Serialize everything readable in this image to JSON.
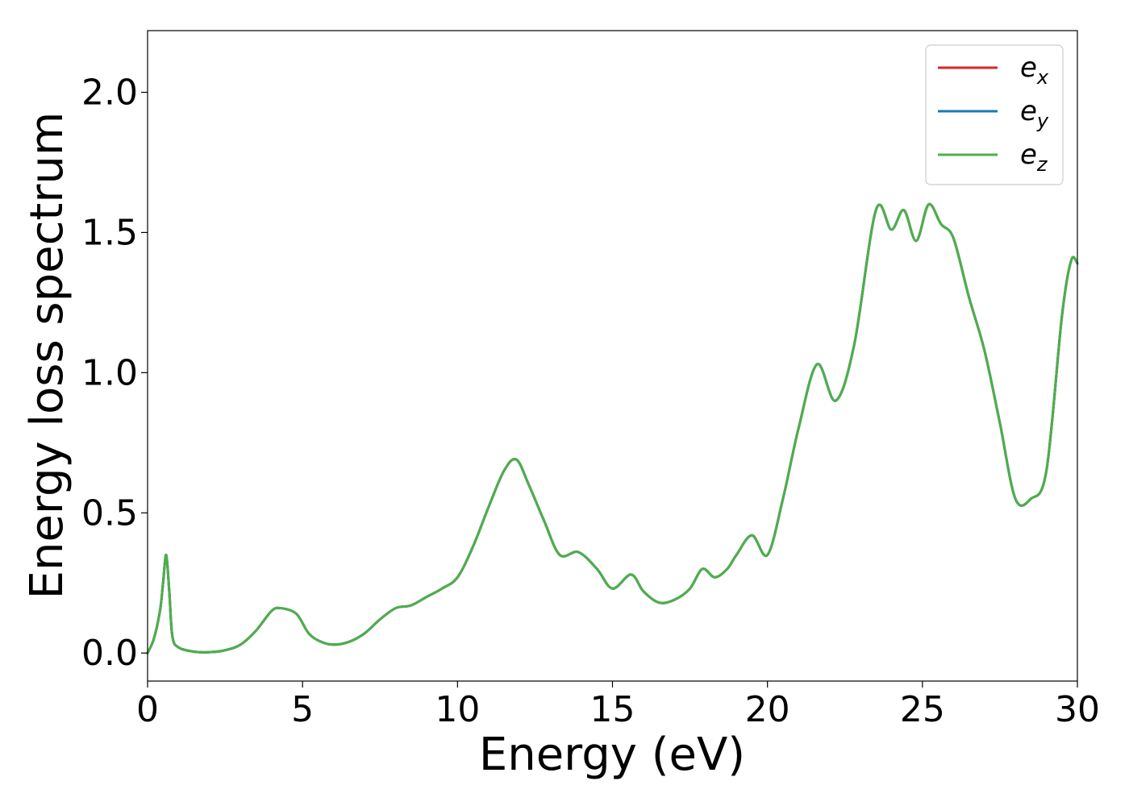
{
  "chart_data": {
    "type": "line",
    "xlabel": "Energy (eV)",
    "ylabel": "Energy loss spectrum",
    "xlim": [
      0,
      30
    ],
    "ylim": [
      -0.1,
      2.22
    ],
    "xticks": [
      0,
      5,
      10,
      15,
      20,
      25,
      30
    ],
    "xtick_labels": [
      "0",
      "5",
      "10",
      "15",
      "20",
      "25",
      "30"
    ],
    "yticks": [
      0.0,
      0.5,
      1.0,
      1.5,
      2.0
    ],
    "ytick_labels": [
      "0.0",
      "0.5",
      "1.0",
      "1.5",
      "2.0"
    ],
    "grid": false,
    "legend_position": "top-right",
    "x": [
      0,
      0.2,
      0.4,
      0.5,
      0.6,
      0.7,
      0.8,
      1.0,
      1.5,
      2.0,
      2.5,
      3.0,
      3.5,
      4.0,
      4.3,
      4.8,
      5.2,
      5.6,
      6.0,
      6.5,
      7.0,
      7.5,
      8.0,
      8.5,
      9.0,
      9.5,
      10.0,
      10.5,
      11.0,
      11.5,
      11.9,
      12.3,
      12.8,
      13.3,
      13.9,
      14.5,
      15.0,
      15.6,
      16.0,
      16.5,
      17.0,
      17.5,
      17.9,
      18.3,
      18.7,
      19.0,
      19.5,
      20.0,
      20.5,
      21.0,
      21.6,
      22.2,
      22.8,
      23.5,
      24.0,
      24.4,
      24.8,
      25.2,
      25.6,
      26.0,
      26.5,
      27.0,
      27.5,
      28.0,
      28.5,
      29.0,
      29.5,
      29.8,
      30.0
    ],
    "series": [
      {
        "name": "e_x",
        "label_base": "e",
        "label_sub": "x",
        "color": "#d62728",
        "values": [
          0.0,
          0.05,
          0.15,
          0.25,
          0.35,
          0.22,
          0.06,
          0.02,
          0.005,
          0.003,
          0.01,
          0.03,
          0.08,
          0.15,
          0.16,
          0.14,
          0.07,
          0.04,
          0.03,
          0.04,
          0.07,
          0.12,
          0.16,
          0.17,
          0.2,
          0.23,
          0.27,
          0.38,
          0.52,
          0.65,
          0.69,
          0.6,
          0.47,
          0.35,
          0.36,
          0.3,
          0.23,
          0.28,
          0.22,
          0.18,
          0.19,
          0.23,
          0.3,
          0.27,
          0.3,
          0.35,
          0.42,
          0.35,
          0.55,
          0.8,
          1.03,
          0.9,
          1.1,
          1.58,
          1.51,
          1.58,
          1.47,
          1.6,
          1.53,
          1.48,
          1.27,
          1.08,
          0.82,
          0.55,
          0.55,
          0.65,
          1.2,
          1.4,
          1.39
        ]
      },
      {
        "name": "e_y",
        "label_base": "e",
        "label_sub": "y",
        "color": "#1f77b4",
        "values": [
          0.0,
          0.05,
          0.15,
          0.25,
          0.35,
          0.22,
          0.06,
          0.02,
          0.005,
          0.003,
          0.01,
          0.03,
          0.08,
          0.15,
          0.16,
          0.14,
          0.07,
          0.04,
          0.03,
          0.04,
          0.07,
          0.12,
          0.16,
          0.17,
          0.2,
          0.23,
          0.27,
          0.38,
          0.52,
          0.65,
          0.69,
          0.6,
          0.47,
          0.35,
          0.36,
          0.3,
          0.23,
          0.28,
          0.22,
          0.18,
          0.19,
          0.23,
          0.3,
          0.27,
          0.3,
          0.35,
          0.42,
          0.35,
          0.55,
          0.8,
          1.03,
          0.9,
          1.1,
          1.58,
          1.51,
          1.58,
          1.47,
          1.6,
          1.53,
          1.48,
          1.27,
          1.08,
          0.82,
          0.55,
          0.55,
          0.65,
          1.2,
          1.4,
          1.39
        ]
      },
      {
        "name": "e_z",
        "label_base": "e",
        "label_sub": "z",
        "color": "#4daf4a",
        "values": [
          0.0,
          0.05,
          0.15,
          0.25,
          0.35,
          0.22,
          0.06,
          0.02,
          0.005,
          0.003,
          0.01,
          0.03,
          0.08,
          0.15,
          0.16,
          0.14,
          0.07,
          0.04,
          0.03,
          0.04,
          0.07,
          0.12,
          0.16,
          0.17,
          0.2,
          0.23,
          0.27,
          0.38,
          0.52,
          0.65,
          0.69,
          0.6,
          0.47,
          0.35,
          0.36,
          0.3,
          0.23,
          0.28,
          0.22,
          0.18,
          0.19,
          0.23,
          0.3,
          0.27,
          0.3,
          0.35,
          0.42,
          0.35,
          0.55,
          0.8,
          1.03,
          0.9,
          1.1,
          1.58,
          1.51,
          1.58,
          1.47,
          1.6,
          1.53,
          1.48,
          1.27,
          1.08,
          0.82,
          0.55,
          0.55,
          0.65,
          1.2,
          1.4,
          1.39
        ]
      }
    ]
  }
}
